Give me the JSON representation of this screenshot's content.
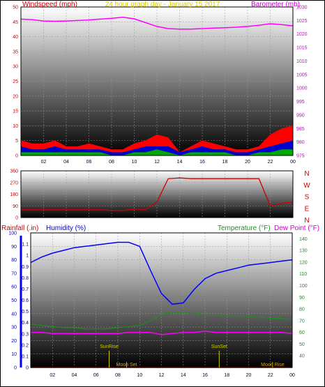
{
  "colors": {
    "windspeed": "#ff0000",
    "gust": "#ff0000",
    "wind_avg": "#0000cc",
    "wind_low": "#00aa00",
    "barometer": "#ff00ff",
    "direction": "#cc0000",
    "humidity": "#0000ff",
    "temperature": "#228b22",
    "dewpoint": "#ff00ff",
    "rainfall": "#cc0000",
    "title": "#d9c800",
    "sun": "#cccc00",
    "moon": "#ccaa00"
  },
  "chart_data": [
    {
      "type": "area",
      "title": "24 hour graph day - January 15 2017",
      "ylabel_left": "Windspeed (mph)",
      "ylabel_right": "Barometer (mb)",
      "ylim_left": [
        0,
        50
      ],
      "ylim_right": [
        975,
        1030
      ],
      "yticks_left": [
        "0",
        "5",
        "10",
        "15",
        "20",
        "25",
        "30",
        "35",
        "40",
        "45",
        "50"
      ],
      "yticks_right": [
        "975",
        "980",
        "985",
        "990",
        "995",
        "1000",
        "1005",
        "1010",
        "1015",
        "1020",
        "1025",
        "1030"
      ],
      "xticks": [
        "02",
        "04",
        "06",
        "08",
        "10",
        "12",
        "14",
        "16",
        "18",
        "20",
        "22",
        "00"
      ],
      "x": [
        0,
        1,
        2,
        3,
        4,
        5,
        6,
        7,
        8,
        9,
        10,
        11,
        12,
        13,
        14,
        15,
        16,
        17,
        18,
        19,
        20,
        21,
        22,
        23,
        24
      ],
      "series": [
        {
          "name": "Windspeed (mph)",
          "role": "gust",
          "values": [
            5,
            4,
            4,
            5,
            3,
            3,
            4,
            3,
            2,
            2,
            4,
            5,
            7,
            6,
            1,
            3,
            5,
            4,
            3,
            2,
            2,
            3,
            7,
            9,
            10
          ]
        },
        {
          "name": "",
          "role": "avg",
          "values": [
            3,
            2,
            2,
            3,
            2,
            2,
            2,
            2,
            1,
            1,
            2,
            3,
            3,
            3,
            1,
            2,
            3,
            2,
            2,
            1,
            1,
            2,
            3,
            4,
            5
          ]
        },
        {
          "name": "",
          "role": "low",
          "values": [
            1,
            1,
            1,
            1,
            1,
            1,
            1,
            1,
            0,
            0,
            1,
            1,
            2,
            1,
            0,
            1,
            1,
            1,
            1,
            0,
            0,
            1,
            1,
            2,
            2
          ]
        },
        {
          "name": "Barometer (mb)",
          "axis": "right",
          "values": [
            1025.5,
            1025.3,
            1024.8,
            1024.7,
            1024.8,
            1025.0,
            1025.2,
            1025.5,
            1025.8,
            1026.2,
            1025.6,
            1024.2,
            1022.8,
            1022.0,
            1021.8,
            1021.8,
            1022.0,
            1022.2,
            1022.3,
            1022.5,
            1022.8,
            1023.2,
            1023.8,
            1023.5,
            1023.0
          ]
        }
      ]
    },
    {
      "type": "line",
      "ylabel_right": [
        "N",
        "W",
        "S",
        "E",
        "N"
      ],
      "ylim": [
        0,
        360
      ],
      "yticks": [
        "0",
        "90",
        "180",
        "270",
        "360"
      ],
      "x": [
        0,
        1,
        2,
        3,
        4,
        5,
        6,
        7,
        8,
        9,
        10,
        11,
        12,
        13,
        14,
        15,
        16,
        17,
        18,
        19,
        20,
        21,
        22,
        23,
        24
      ],
      "series": [
        {
          "name": "",
          "values": [
            60,
            60,
            60,
            60,
            60,
            60,
            60,
            60,
            55,
            55,
            65,
            60,
            120,
            300,
            305,
            300,
            300,
            300,
            300,
            300,
            300,
            300,
            90,
            110,
            120
          ]
        }
      ]
    },
    {
      "type": "line",
      "ylabel_rain": "Rainfall (.in)",
      "ylabel_humidity": "Humidity (%)",
      "ylabel_temp": "Temperature (°F)",
      "ylabel_dew": "Dew Point (°F)",
      "ylim_rain": [
        0,
        1.2
      ],
      "ylim_humidity": [
        0,
        100
      ],
      "ylim_temp": [
        30,
        145
      ],
      "yticks_rain": [
        "0",
        "0.1",
        "0.2",
        "0.3",
        "0.4",
        "0.5",
        "0.6",
        "0.7",
        "0.8",
        "0.9",
        "1",
        "1.1"
      ],
      "yticks_humidity": [
        "0",
        "10",
        "20",
        "30",
        "40",
        "50",
        "60",
        "70",
        "80",
        "90",
        "100"
      ],
      "yticks_temp": [
        "40",
        "50",
        "60",
        "70",
        "80",
        "90",
        "100",
        "110",
        "120",
        "130",
        "140"
      ],
      "xticks": [
        "02",
        "04",
        "06",
        "08",
        "10",
        "12",
        "14",
        "16",
        "18",
        "20",
        "22",
        "00"
      ],
      "x": [
        0,
        1,
        2,
        3,
        4,
        5,
        6,
        7,
        8,
        9,
        10,
        11,
        12,
        13,
        14,
        15,
        16,
        17,
        18,
        19,
        20,
        21,
        22,
        23,
        24
      ],
      "series": [
        {
          "name": "Humidity (%)",
          "axis": "humidity",
          "values": [
            78,
            82,
            85,
            87,
            89,
            90,
            91,
            92,
            93,
            93,
            90,
            72,
            55,
            47,
            48,
            58,
            66,
            70,
            72,
            74,
            76,
            77,
            78,
            79,
            80
          ]
        },
        {
          "name": "Temperature (°F)",
          "axis": "temp",
          "values": [
            67,
            66,
            65,
            64,
            64,
            63,
            63,
            63,
            64,
            65,
            66,
            70,
            75,
            77,
            77,
            76,
            75,
            75,
            74,
            74,
            73,
            73,
            72,
            72,
            71
          ]
        },
        {
          "name": "Dew Point (°F)",
          "axis": "temp",
          "values": [
            60,
            60,
            59,
            59,
            59,
            59,
            59,
            59,
            59,
            60,
            60,
            60,
            58,
            59,
            60,
            60,
            61,
            60,
            60,
            60,
            60,
            60,
            60,
            60,
            59
          ]
        },
        {
          "name": "Rainfall (.in)",
          "axis": "rain",
          "values": [
            0,
            0,
            0,
            0,
            0,
            0,
            0,
            0,
            0,
            0,
            0,
            0,
            0,
            0,
            0,
            0,
            0,
            0,
            0,
            0,
            0,
            0,
            0,
            0,
            0
          ]
        }
      ],
      "annotations": [
        {
          "label": "SunRise",
          "x": 7.2,
          "kind": "sun"
        },
        {
          "label": "SunSet",
          "x": 17.3,
          "kind": "sun"
        },
        {
          "label": "Moon Set",
          "x": 8.8,
          "kind": "moon"
        },
        {
          "label": "Moon Rise",
          "x": 22.2,
          "kind": "moon"
        }
      ]
    }
  ]
}
